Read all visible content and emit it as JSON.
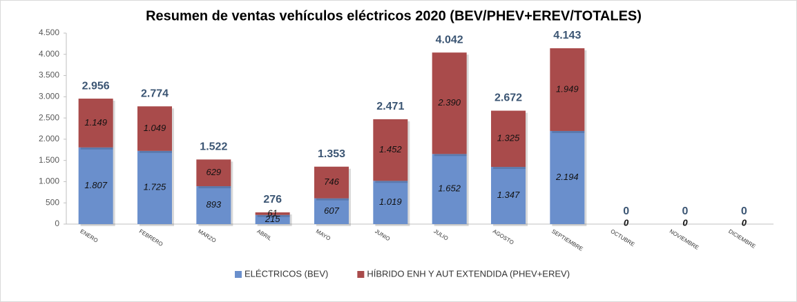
{
  "chart_data": {
    "type": "stacked-bar",
    "title": "Resumen de ventas vehículos eléctricos 2020 (BEV/PHEV+EREV/TOTALES)",
    "categories": [
      "ENERO",
      "FEBRERO",
      "MARZO",
      "ABRIL",
      "MAYO",
      "JUNIO",
      "JULIO",
      "AGOSTO",
      "SEPTIEMBRE",
      "OCTUBRE",
      "NOVIEMBRE",
      "DICIEMBRE"
    ],
    "series": [
      {
        "name": "ELÉCTRICOS (BEV)",
        "color": "#6a8fcc",
        "values": [
          1807,
          1725,
          893,
          215,
          607,
          1019,
          1652,
          1347,
          2194,
          0,
          0,
          0
        ],
        "value_labels": [
          "1.807",
          "1.725",
          "893",
          "215",
          "607",
          "1.019",
          "1.652",
          "1.347",
          "2.194",
          "0",
          "0",
          "0"
        ]
      },
      {
        "name": "HÍBRIDO ENH Y AUT EXTENDIDA (PHEV+EREV)",
        "color": "#a94b4b",
        "values": [
          1149,
          1049,
          629,
          61,
          746,
          1452,
          2390,
          1325,
          1949,
          0,
          0,
          0
        ],
        "value_labels": [
          "1.149",
          "1.049",
          "629",
          "61",
          "746",
          "1.452",
          "2.390",
          "1.325",
          "1.949",
          "0",
          "0",
          "0"
        ]
      }
    ],
    "totals": {
      "values": [
        2956,
        2774,
        1522,
        276,
        1353,
        2471,
        4042,
        2672,
        4143,
        0,
        0,
        0
      ],
      "value_labels": [
        "2.956",
        "2.774",
        "1.522",
        "276",
        "1.353",
        "2.471",
        "4.042",
        "2.672",
        "4.143",
        "0",
        "0",
        "0"
      ]
    },
    "ylim": [
      0,
      4500
    ],
    "yticks": [
      0,
      {
        "value": 500,
        "label": "500"
      },
      {
        "value": 1000,
        "label": "1.000"
      },
      {
        "value": 1500,
        "label": "1.500"
      },
      {
        "value": 2000,
        "label": "2.000"
      },
      {
        "value": 2500,
        "label": "2.500"
      },
      {
        "value": 3000,
        "label": "3.000"
      },
      {
        "value": 3500,
        "label": "3.500"
      },
      {
        "value": 4000,
        "label": "4.000"
      },
      {
        "value": 4500,
        "label": "4.500"
      }
    ],
    "grid": false,
    "legend": "bottom"
  }
}
